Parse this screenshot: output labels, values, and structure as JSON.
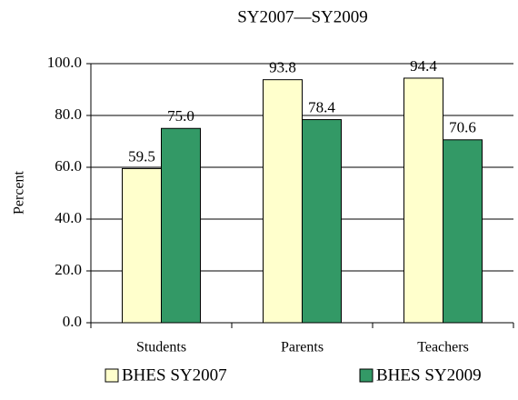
{
  "chart_data": {
    "type": "bar",
    "title": "SY2007—SY2009",
    "ylabel": "Percent",
    "categories": [
      "Students",
      "Parents",
      "Teachers"
    ],
    "series": [
      {
        "name": "BHES SY2007",
        "color": "#ffffcc",
        "values": [
          59.5,
          93.8,
          94.4
        ],
        "value_labels": [
          "59.5",
          "93.8",
          "94.4"
        ]
      },
      {
        "name": "BHES SY2009",
        "color": "#339966",
        "values": [
          75,
          78.4,
          70.6
        ],
        "value_labels": [
          "75.0",
          "78.4",
          "70.6"
        ]
      }
    ],
    "ylim": [
      0,
      100
    ],
    "yticks": [
      {
        "value": 0,
        "label": "0.0"
      },
      {
        "value": 20,
        "label": "20.0"
      },
      {
        "value": 40,
        "label": "40.0"
      },
      {
        "value": 60,
        "label": "60.0"
      },
      {
        "value": 80,
        "label": "80.0"
      },
      {
        "value": 100,
        "label": "100.0"
      }
    ],
    "grid": true
  }
}
